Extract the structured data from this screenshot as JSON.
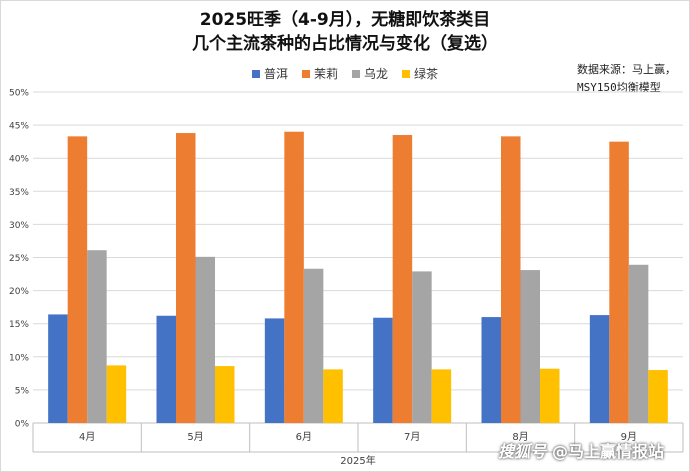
{
  "title_line1": "2025旺季（4-9月），无糖即饮茶类目",
  "title_line2": "几个主流茶种的占比情况与变化（复选）",
  "source_line1": "数据来源：马上赢，",
  "source_line2": "MSY150均衡模型",
  "watermark": {
    "logo": "搜狐号",
    "text": "@马上赢情报站"
  },
  "colors": {
    "puer": "#4472c4",
    "jasmine": "#ed7d31",
    "oolong": "#a5a5a5",
    "green": "#ffc000",
    "grid": "#d9d9d9",
    "axis_text": "#404040"
  },
  "chart_data": {
    "type": "bar",
    "title": "2025旺季（4-9月），无糖即饮茶类目 几个主流茶种的占比情况与变化（复选）",
    "xlabel": "2025年",
    "ylabel": "",
    "categories": [
      "4月",
      "5月",
      "6月",
      "7月",
      "8月",
      "9月"
    ],
    "ylim": [
      0,
      50
    ],
    "yticks": [
      0,
      5,
      10,
      15,
      20,
      25,
      30,
      35,
      40,
      45,
      50
    ],
    "ytick_labels": [
      "0%",
      "5%",
      "10%",
      "15%",
      "20%",
      "25%",
      "30%",
      "35%",
      "40%",
      "45%",
      "50%"
    ],
    "grid": true,
    "legend_position": "top",
    "series": [
      {
        "name": "普洱",
        "color": "#4472c4",
        "values": [
          16.4,
          16.2,
          15.8,
          15.9,
          16.0,
          16.3
        ]
      },
      {
        "name": "茉莉",
        "color": "#ed7d31",
        "values": [
          43.3,
          43.8,
          44.0,
          43.5,
          43.3,
          42.5
        ]
      },
      {
        "name": "乌龙",
        "color": "#a5a5a5",
        "values": [
          26.1,
          25.1,
          23.3,
          22.9,
          23.1,
          23.9
        ]
      },
      {
        "name": "绿茶",
        "color": "#ffc000",
        "values": [
          8.7,
          8.6,
          8.1,
          8.1,
          8.2,
          8.0
        ]
      }
    ]
  }
}
